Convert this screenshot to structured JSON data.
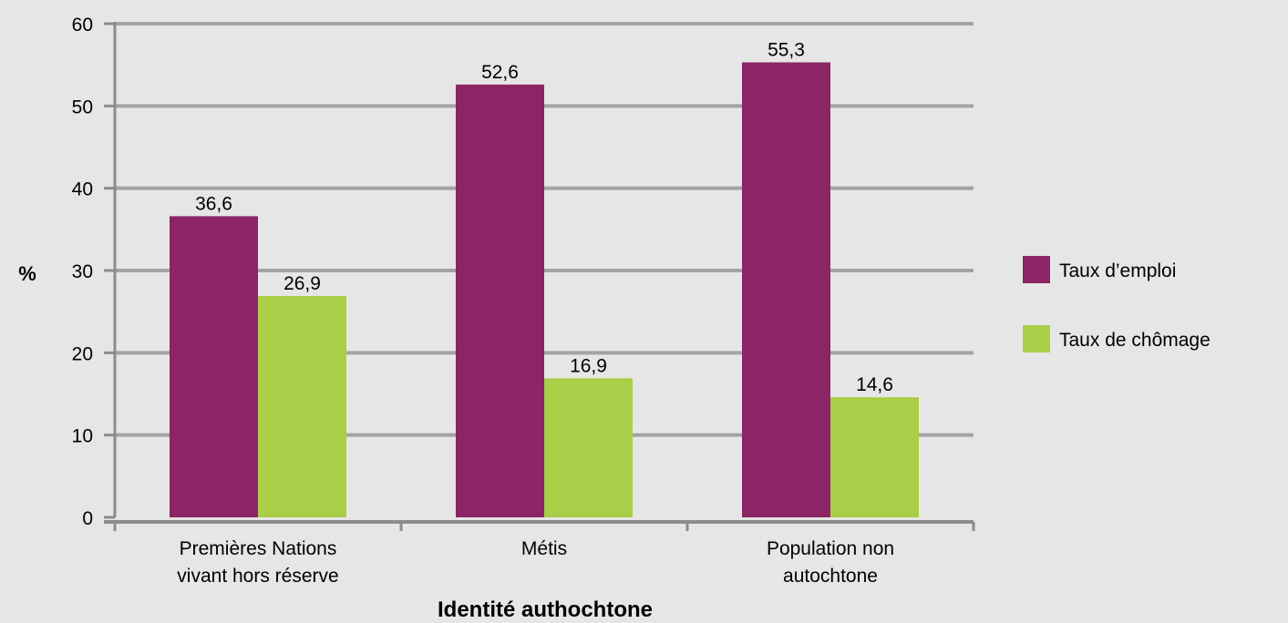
{
  "chart_data": {
    "type": "bar",
    "title": "",
    "xlabel": "Identité authochtone",
    "ylabel": "%",
    "ylim": [
      0,
      60
    ],
    "yticks": [
      0,
      10,
      20,
      30,
      40,
      50,
      60
    ],
    "grid": true,
    "legend_position": "right",
    "categories": [
      [
        "Premières Nations",
        "vivant hors réserve"
      ],
      [
        "Métis"
      ],
      [
        "Population non",
        "autochtone"
      ]
    ],
    "series": [
      {
        "name": "Taux d’emploi",
        "color": "#8b2565",
        "values": [
          36.6,
          52.6,
          55.3
        ],
        "labels": [
          "36,6",
          "52,6",
          "55,3"
        ]
      },
      {
        "name": "Taux de chômage",
        "color": "#a9ce47",
        "values": [
          26.9,
          16.9,
          14.6
        ],
        "labels": [
          "26,9",
          "16,9",
          "14,6"
        ]
      }
    ]
  }
}
